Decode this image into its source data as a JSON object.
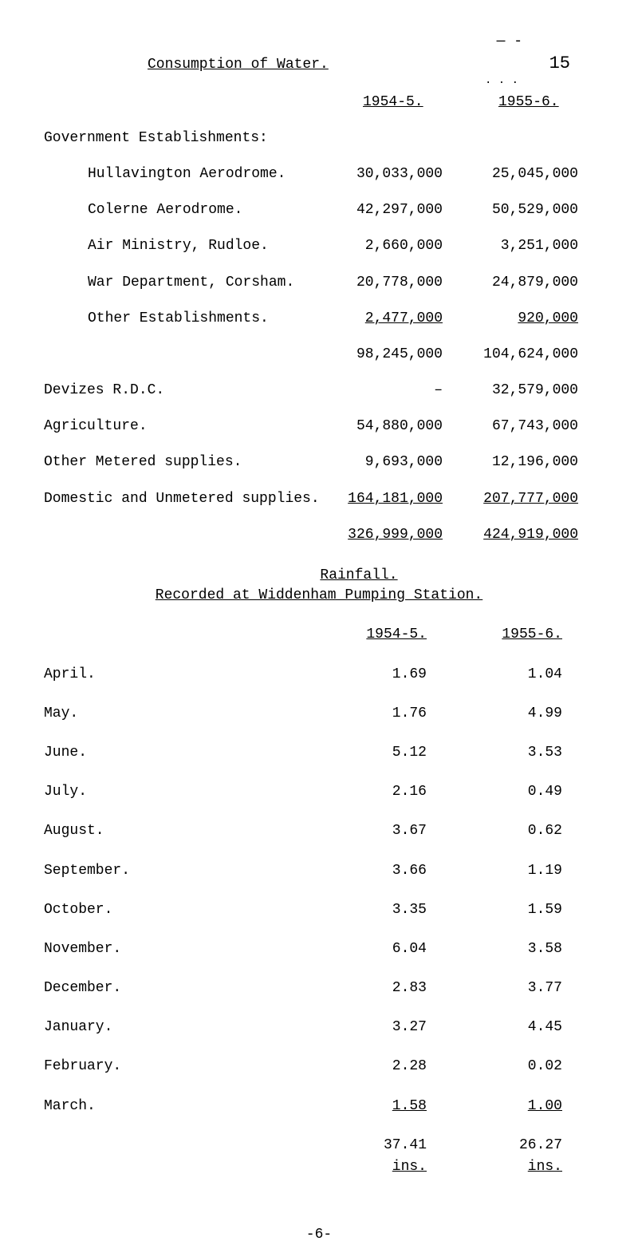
{
  "top_dash": "— -",
  "title": "Consumption of Water.",
  "page_num": "15",
  "top_dots": ". . .",
  "columns": {
    "col1": "1954-5.",
    "col2": "1955-6."
  },
  "section1_heading": "Government Establishments:",
  "table1": [
    {
      "label": "Hullavington Aerodrome.",
      "v1": "30,033,000",
      "v2": "25,045,000",
      "indent": true
    },
    {
      "label": "Colerne Aerodrome.",
      "v1": "42,297,000",
      "v2": "50,529,000",
      "indent": true
    },
    {
      "label": "Air Ministry, Rudloe.",
      "v1": "2,660,000",
      "v2": "3,251,000",
      "indent": true
    },
    {
      "label": "War Department, Corsham.",
      "v1": "20,778,000",
      "v2": "24,879,000",
      "indent": true
    },
    {
      "label": "Other Establishments.",
      "v1": "2,477,000",
      "v2": "920,000",
      "indent": true,
      "underline": true
    },
    {
      "label": "",
      "v1": "98,245,000",
      "v2": "104,624,000"
    },
    {
      "label": "Devizes R.D.C.",
      "v1": "–",
      "v2": "32,579,000"
    },
    {
      "label": "Agriculture.",
      "v1": "54,880,000",
      "v2": "67,743,000"
    },
    {
      "label": "Other Metered supplies.",
      "v1": "9,693,000",
      "v2": "12,196,000"
    },
    {
      "label": "Domestic and Unmetered supplies.",
      "v1": "164,181,000",
      "v2": "207,777,000",
      "underline": true
    },
    {
      "label": "",
      "v1": "326,999,000",
      "v2": "424,919,000",
      "underline": true
    }
  ],
  "rainfall_title": "Rainfall.",
  "rainfall_subtitle": "Recorded at Widdenham Pumping Station.",
  "rf_columns": {
    "col1": "1954-5.",
    "col2": "1955-6."
  },
  "table2": [
    {
      "label": "April.",
      "v1": "1.69",
      "v2": "1.04"
    },
    {
      "label": "May.",
      "v1": "1.76",
      "v2": "4.99"
    },
    {
      "label": "June.",
      "v1": "5.12",
      "v2": "3.53"
    },
    {
      "label": "July.",
      "v1": "2.16",
      "v2": "0.49"
    },
    {
      "label": "August.",
      "v1": "3.67",
      "v2": "0.62"
    },
    {
      "label": "September.",
      "v1": "3.66",
      "v2": "1.19"
    },
    {
      "label": "October.",
      "v1": "3.35",
      "v2": "1.59"
    },
    {
      "label": "November.",
      "v1": "6.04",
      "v2": "3.58"
    },
    {
      "label": "December.",
      "v1": "2.83",
      "v2": "3.77"
    },
    {
      "label": "January.",
      "v1": "3.27",
      "v2": "4.45"
    },
    {
      "label": "February.",
      "v1": "2.28",
      "v2": "0.02"
    },
    {
      "label": "March.",
      "v1": "1.58",
      "v2": "1.00",
      "underline": true
    }
  ],
  "totals": {
    "v1": "37.41",
    "v2": "26.27"
  },
  "ins": {
    "v1": "ins.",
    "v2": "ins."
  },
  "page_footer": "-6-"
}
